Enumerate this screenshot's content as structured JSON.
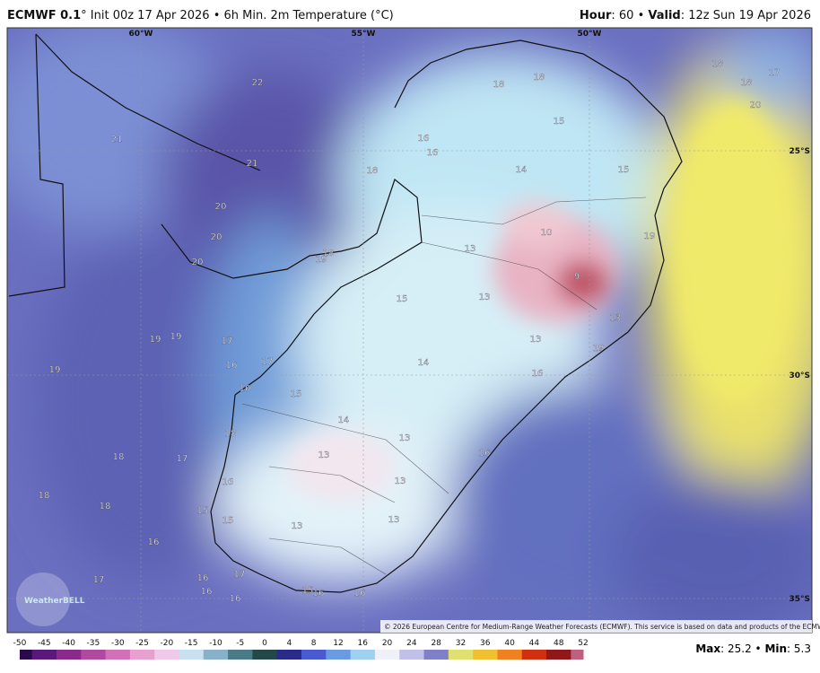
{
  "header": {
    "model": "ECMWF 0.1",
    "init": "° Init 00z 17 Apr 2026 • 6h Min. 2m Temperature (°C)",
    "hour_label": "Hour",
    "hour": ": 60 • ",
    "valid_label": "Valid",
    "valid": ": 12z Sun 19 Apr 2026"
  },
  "map": {
    "lon_labels": [
      "60°W",
      "55°W",
      "50°W"
    ],
    "lat_labels": [
      "25°S",
      "30°S",
      "35°S"
    ],
    "point_labels": [
      22,
      21,
      21,
      20,
      20,
      20,
      18,
      18,
      18,
      17,
      18,
      20,
      16,
      16,
      15,
      14,
      15,
      18,
      10,
      19,
      13,
      18,
      19,
      9,
      15,
      13,
      13,
      13,
      19,
      19,
      19,
      17,
      16,
      17,
      14,
      16,
      19,
      10,
      15,
      14,
      13,
      18,
      18,
      17,
      13,
      16,
      13,
      16,
      18,
      18,
      15,
      13,
      13,
      15,
      16,
      17,
      16,
      17,
      16,
      16,
      15,
      16,
      16
    ],
    "copyright": "© 2026 European Centre for Medium-Range Weather Forecasts (ECMWF). This service is based on data and products of the ECMWF.",
    "logo": "WeatherBELL"
  },
  "colorbar": {
    "ticks": [
      -50,
      -45,
      -40,
      -35,
      -30,
      -25,
      -20,
      -15,
      -10,
      -5,
      0,
      4,
      8,
      12,
      16,
      20,
      24,
      28,
      32,
      36,
      40,
      44,
      48,
      52
    ]
  },
  "footer": {
    "max_label": "Max",
    "max": ": 25.2 • ",
    "min_label": "Min",
    "min": ": 5.3"
  }
}
